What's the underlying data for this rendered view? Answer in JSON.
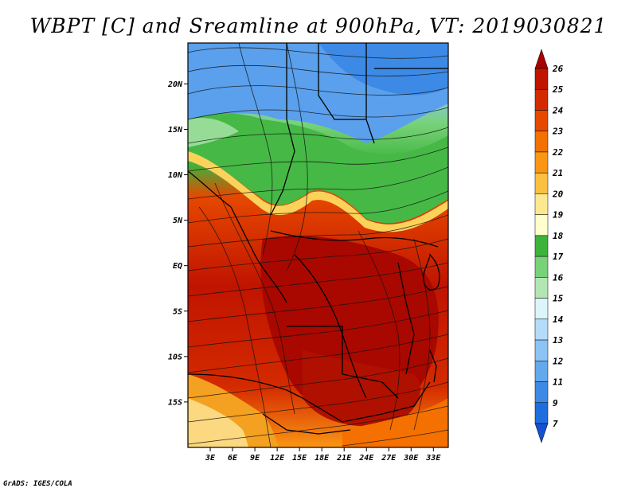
{
  "title": "WBPT [C] and Sreamline at 900hPa, VT: 2019030821",
  "credit": "GrADS: IGES/COLA",
  "map": {
    "lat_ticks": [
      {
        "label": "20N",
        "value": 20
      },
      {
        "label": "15N",
        "value": 15
      },
      {
        "label": "10N",
        "value": 10
      },
      {
        "label": "5N",
        "value": 5
      },
      {
        "label": "EQ",
        "value": 0
      },
      {
        "label": "5S",
        "value": -5
      },
      {
        "label": "10S",
        "value": -10
      },
      {
        "label": "15S",
        "value": -15
      }
    ],
    "lon_ticks": [
      {
        "label": "3E",
        "value": 3
      },
      {
        "label": "6E",
        "value": 6
      },
      {
        "label": "9E",
        "value": 9
      },
      {
        "label": "12E",
        "value": 12
      },
      {
        "label": "15E",
        "value": 15
      },
      {
        "label": "18E",
        "value": 18
      },
      {
        "label": "21E",
        "value": 21
      },
      {
        "label": "24E",
        "value": 24
      },
      {
        "label": "27E",
        "value": 27
      },
      {
        "label": "30E",
        "value": 30
      },
      {
        "label": "33E",
        "value": 33
      }
    ],
    "lon_range": [
      0,
      35
    ],
    "lat_range": [
      -20,
      24.5
    ]
  },
  "colorbar": {
    "labels": [
      "26",
      "25",
      "24",
      "23",
      "22",
      "21",
      "20",
      "19",
      "18",
      "17",
      "16",
      "15",
      "14",
      "13",
      "12",
      "11",
      "9",
      "7"
    ],
    "colors": [
      "#a60000",
      "#c01400",
      "#d42a00",
      "#e64800",
      "#f47000",
      "#fa9614",
      "#fcc040",
      "#fde890",
      "#ffffcc",
      "#3cb43c",
      "#78d278",
      "#b4e6b4",
      "#dcf5fa",
      "#b4dcfa",
      "#8cc3f5",
      "#64a8ee",
      "#3c8ae6",
      "#1e6ee0",
      "#1450d2"
    ]
  }
}
